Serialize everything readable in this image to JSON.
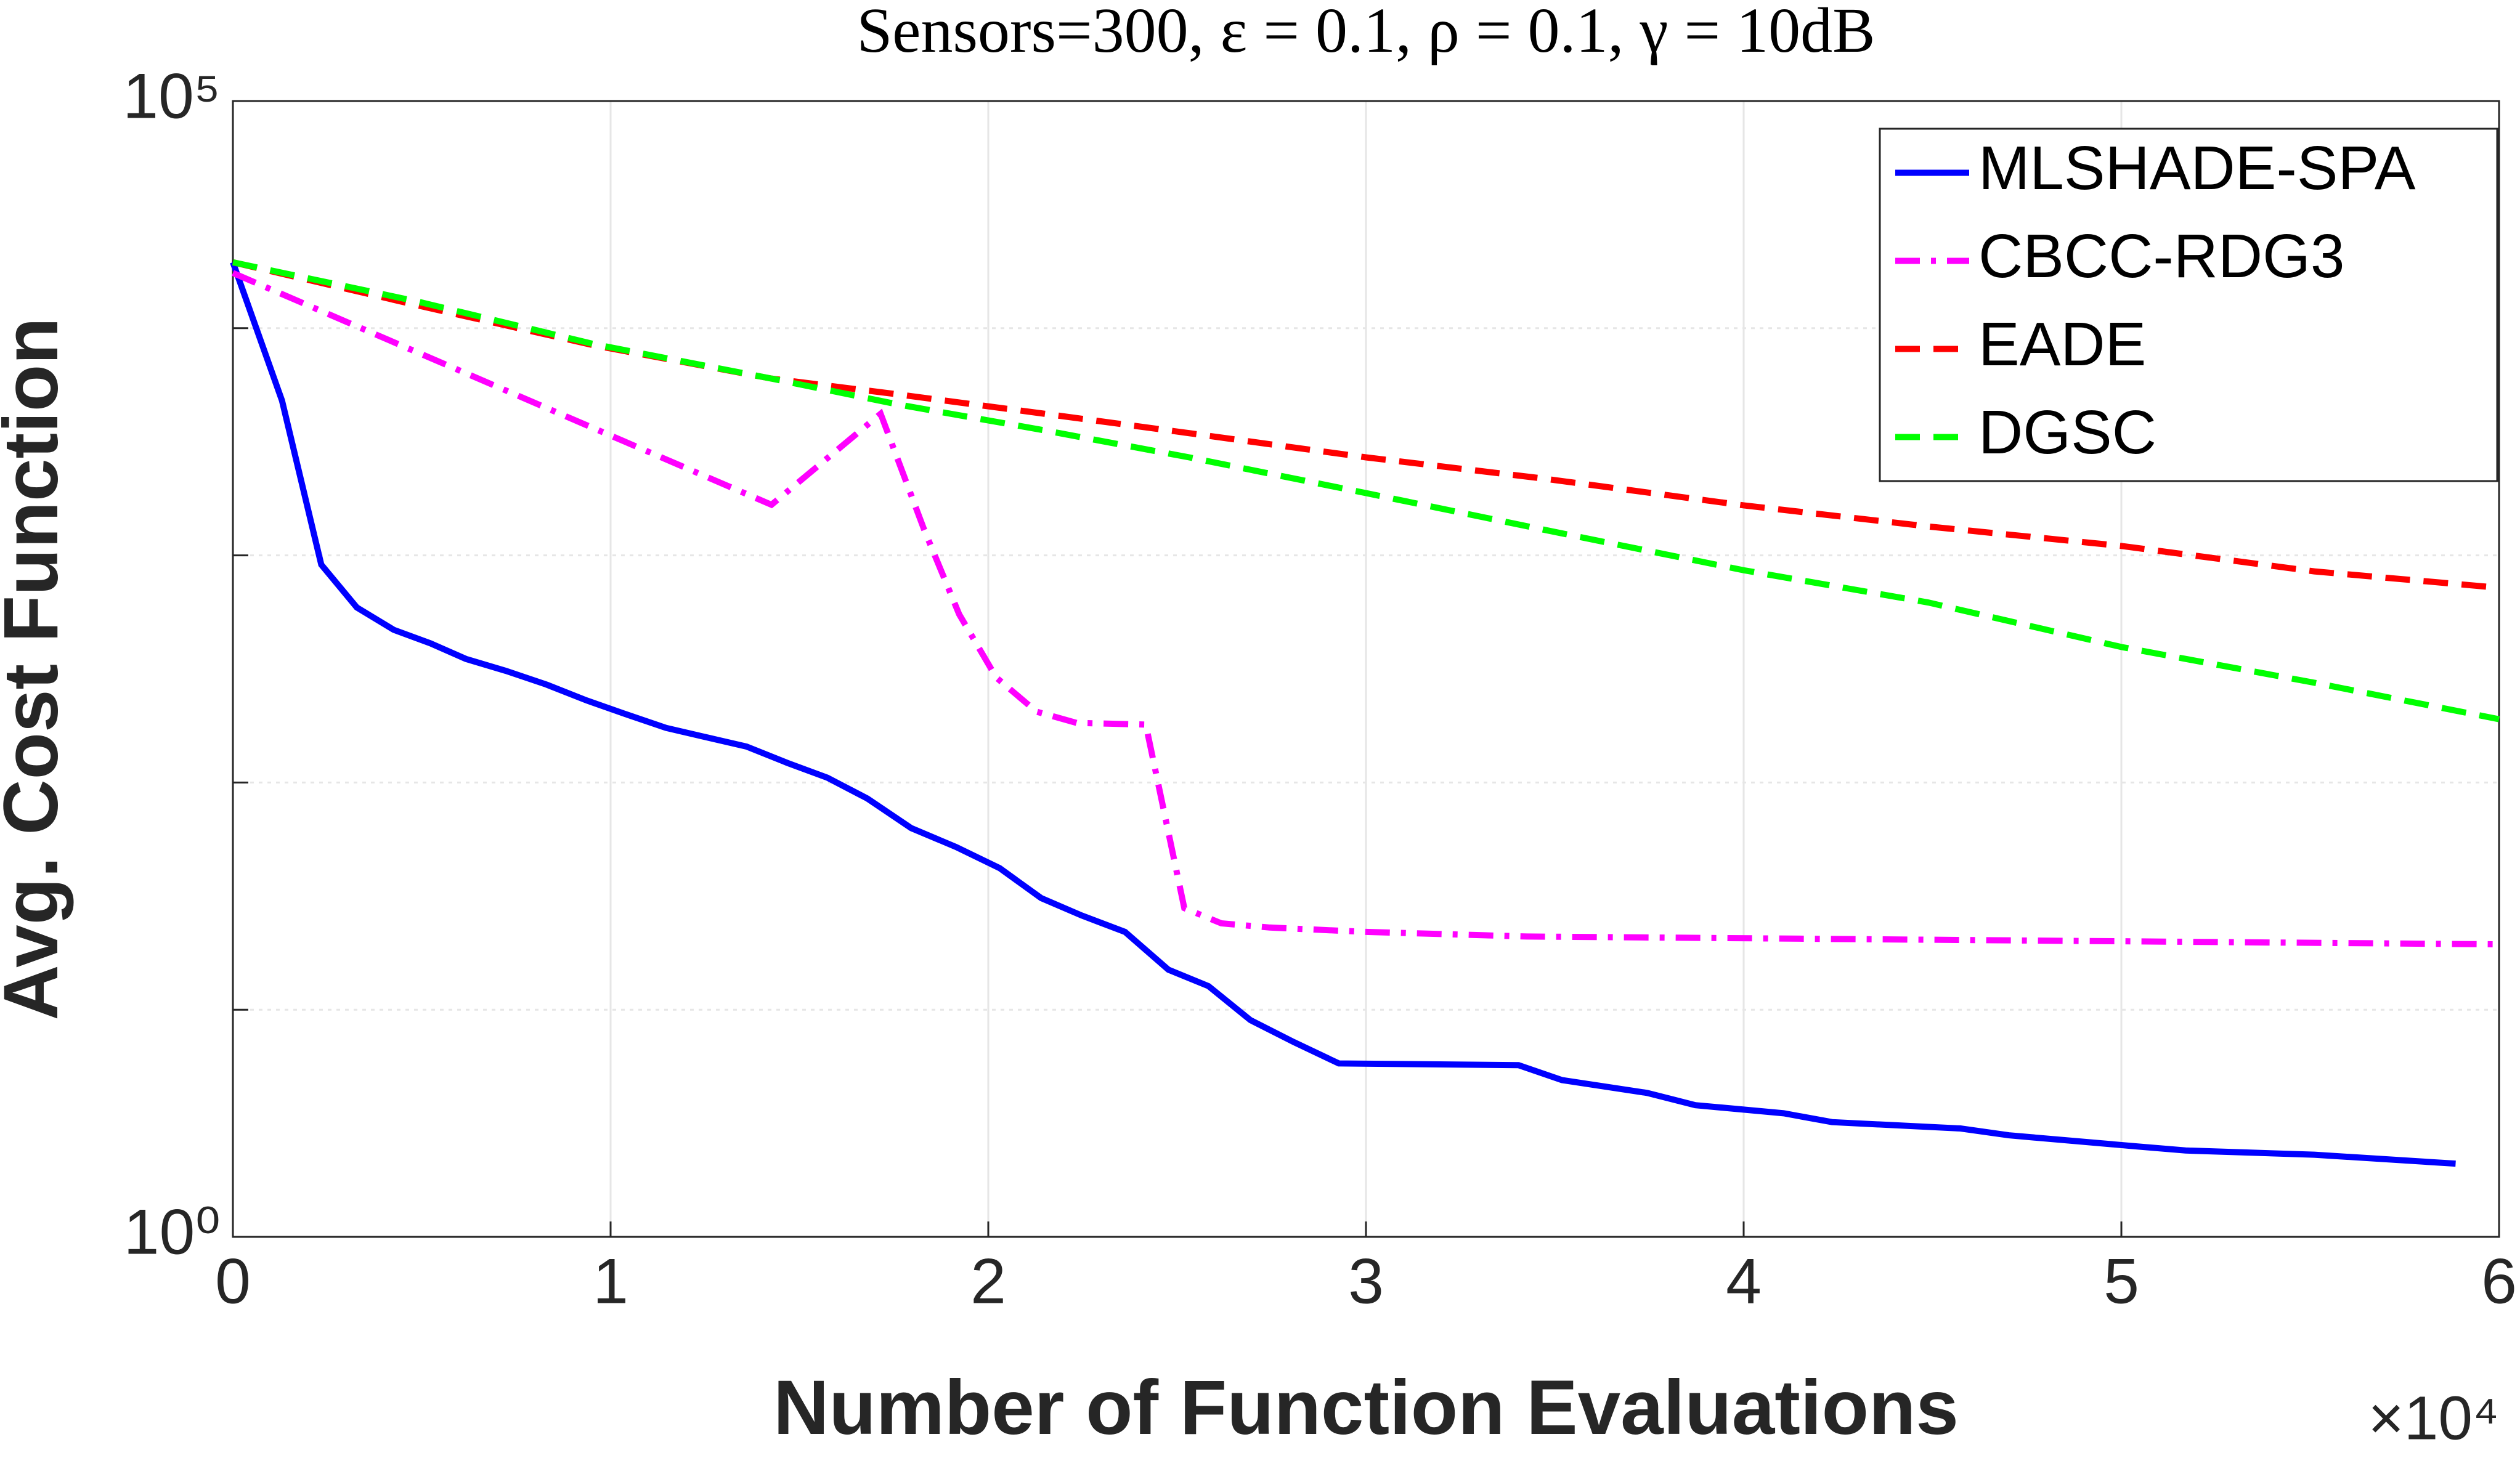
{
  "chart_data": {
    "type": "line",
    "title": "Sensors=300, ε = 0.1, ρ = 0.1, γ = 10dB",
    "x_label": "Number of Function Evaluations",
    "y_label": "Avg. Cost Function",
    "x_multiplier": "×10⁴",
    "xlim": [
      0,
      60000
    ],
    "xticks": [
      {
        "value": 0,
        "label": "0"
      },
      {
        "value": 10000,
        "label": "1"
      },
      {
        "value": 20000,
        "label": "2"
      },
      {
        "value": 30000,
        "label": "3"
      },
      {
        "value": 40000,
        "label": "4"
      },
      {
        "value": 50000,
        "label": "5"
      },
      {
        "value": 60000,
        "label": "6"
      }
    ],
    "ylim": [
      1,
      100000
    ],
    "yticks": [
      {
        "value": 1,
        "label": "10⁰"
      },
      {
        "value": 100000,
        "label": "10⁵"
      }
    ],
    "yminorticks": [
      10,
      100,
      1000,
      10000
    ],
    "log_y": true,
    "grid": true,
    "legend": "upper right",
    "series": [
      {
        "name": "MLSHADE-SPA",
        "color": "#0000ff",
        "dash": "solid",
        "x": [
          0,
          1300,
          2340,
          3280,
          4260,
          5230,
          6170,
          7230,
          8300,
          9360,
          10400,
          11470,
          12550,
          13600,
          14680,
          15740,
          16800,
          17960,
          19150,
          20300,
          21400,
          22470,
          23620,
          24770,
          25830,
          26940,
          28090,
          29280,
          34040,
          35190,
          37450,
          38720,
          41060,
          42340,
          45740,
          47020,
          50430,
          51700,
          55110,
          58850
        ],
        "values": [
          19500,
          4800,
          910,
          590,
          470,
          410,
          350,
          310,
          270,
          230,
          200,
          174,
          158,
          144,
          122,
          105,
          85,
          63,
          52,
          42,
          31,
          26,
          22,
          15,
          12.7,
          9,
          7.2,
          5.8,
          5.7,
          4.9,
          4.3,
          3.8,
          3.5,
          3.2,
          3.0,
          2.8,
          2.5,
          2.4,
          2.3,
          2.1
        ]
      },
      {
        "name": "CBCC-RDG3",
        "color": "#ff00ff",
        "dash": "dashdot",
        "x": [
          0,
          14260,
          17150,
          18300,
          19230,
          20210,
          21280,
          22340,
          24170,
          25190,
          26170,
          27450,
          30000,
          34260,
          60000
        ],
        "values": [
          17500,
          1670,
          4200,
          1300,
          550,
          290,
          205,
          183,
          180,
          28,
          24,
          23,
          22,
          21,
          19.4
        ]
      },
      {
        "name": "EADE",
        "color": "#ff0000",
        "dash": "dashed",
        "x": [
          0,
          4890,
          9570,
          14260,
          17660,
          21490,
          25320,
          30000,
          34680,
          40000,
          44890,
          50000,
          55110,
          60000
        ],
        "values": [
          19500,
          12600,
          8400,
          6000,
          5100,
          4200,
          3450,
          2700,
          2180,
          1660,
          1340,
          1100,
          850,
          720
        ]
      },
      {
        "name": "DGSC",
        "color": "#00ff00",
        "dash": "dashed",
        "x": [
          0,
          4890,
          9570,
          14260,
          17660,
          21490,
          25320,
          30000,
          34680,
          40000,
          44890,
          50000,
          55110,
          60000
        ],
        "values": [
          19500,
          13100,
          8500,
          6000,
          4600,
          3550,
          2700,
          1880,
          1300,
          860,
          620,
          395,
          275,
          190
        ]
      }
    ]
  }
}
